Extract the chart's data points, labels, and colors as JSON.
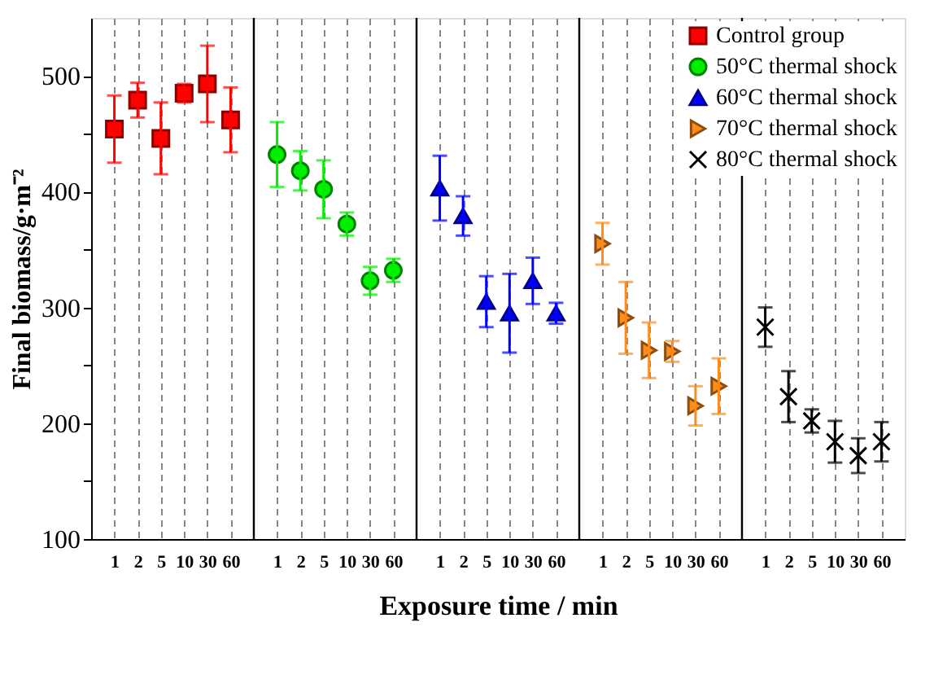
{
  "chart_data": {
    "type": "scatter",
    "categories": [
      "1",
      "2",
      "5",
      "10",
      "30",
      "60",
      "1",
      "2",
      "5",
      "10",
      "30",
      "60",
      "1",
      "2",
      "5",
      "10",
      "30",
      "60",
      "1",
      "2",
      "5",
      "10",
      "30",
      "60",
      "1",
      "2",
      "5",
      "10",
      "30",
      "60"
    ],
    "xlabel": "Exposure time / min",
    "ylabel": "Final biomass/g·m⁻²",
    "ylim": [
      100,
      550
    ],
    "yticks": [
      100,
      {
        "value": 150,
        "label": null
      },
      200,
      {
        "value": 250,
        "label": null
      },
      300,
      {
        "value": 350,
        "label": null
      },
      400,
      {
        "value": 450,
        "label": null
      },
      500
    ],
    "grid": "x",
    "legend": "top right",
    "series": [
      {
        "name": "Control group",
        "color": "#ff0000",
        "marker": "square",
        "values": [
          454,
          479,
          446,
          485,
          493,
          462,
          null,
          null,
          null,
          null,
          null,
          null,
          null,
          null,
          null,
          null,
          null,
          null,
          null,
          null,
          null,
          null,
          null,
          null,
          null,
          null,
          null,
          null,
          null,
          null
        ],
        "errors": [
          29,
          15,
          31,
          8,
          33,
          28,
          null,
          null,
          null,
          null,
          null,
          null,
          null,
          null,
          null,
          null,
          null,
          null,
          null,
          null,
          null,
          null,
          null,
          null,
          null,
          null,
          null,
          null,
          null,
          null
        ]
      },
      {
        "name": "50°C thermal shock",
        "color": "#00ee00",
        "marker": "circle",
        "values": [
          null,
          null,
          null,
          null,
          null,
          null,
          432,
          418,
          402,
          372,
          323,
          332,
          null,
          null,
          null,
          null,
          null,
          null,
          null,
          null,
          null,
          null,
          null,
          null,
          null,
          null,
          null,
          null,
          null,
          null
        ],
        "errors": [
          null,
          null,
          null,
          null,
          null,
          null,
          28,
          17,
          25,
          10,
          12,
          10,
          null,
          null,
          null,
          null,
          null,
          null,
          null,
          null,
          null,
          null,
          null,
          null,
          null,
          null,
          null,
          null,
          null,
          null
        ]
      },
      {
        "name": "60°C thermal shock",
        "color": "#0000ff",
        "marker": "triangle",
        "values": [
          null,
          null,
          null,
          null,
          null,
          null,
          null,
          null,
          null,
          null,
          null,
          null,
          403,
          379,
          305,
          295,
          323,
          295,
          null,
          null,
          null,
          null,
          null,
          null,
          null,
          null,
          null,
          null,
          null,
          null
        ],
        "errors": [
          null,
          null,
          null,
          null,
          null,
          null,
          null,
          null,
          null,
          null,
          null,
          null,
          28,
          17,
          22,
          34,
          20,
          9,
          null,
          null,
          null,
          null,
          null,
          null,
          null,
          null,
          null,
          null,
          null,
          null
        ]
      },
      {
        "name": "70°C thermal shock",
        "color": "#ff8c1a",
        "marker": "triangle-right",
        "values": [
          null,
          null,
          null,
          null,
          null,
          null,
          null,
          null,
          null,
          null,
          null,
          null,
          null,
          null,
          null,
          null,
          null,
          null,
          355,
          291,
          263,
          262,
          215,
          232,
          null,
          null,
          null,
          null,
          null,
          null
        ],
        "errors": [
          null,
          null,
          null,
          null,
          null,
          null,
          null,
          null,
          null,
          null,
          null,
          null,
          null,
          null,
          null,
          null,
          null,
          null,
          18,
          31,
          24,
          9,
          17,
          24,
          null,
          null,
          null,
          null,
          null,
          null
        ]
      },
      {
        "name": "80°C thermal shock",
        "color": "#000000",
        "marker": "cross",
        "values": [
          null,
          null,
          null,
          null,
          null,
          null,
          null,
          null,
          null,
          null,
          null,
          null,
          null,
          null,
          null,
          null,
          null,
          null,
          null,
          null,
          null,
          null,
          null,
          null,
          283,
          223,
          202,
          184,
          172,
          184
        ],
        "errors": [
          null,
          null,
          null,
          null,
          null,
          null,
          null,
          null,
          null,
          null,
          null,
          null,
          null,
          null,
          null,
          null,
          null,
          null,
          null,
          null,
          null,
          null,
          null,
          null,
          17,
          22,
          10,
          18,
          15,
          17
        ]
      }
    ]
  }
}
